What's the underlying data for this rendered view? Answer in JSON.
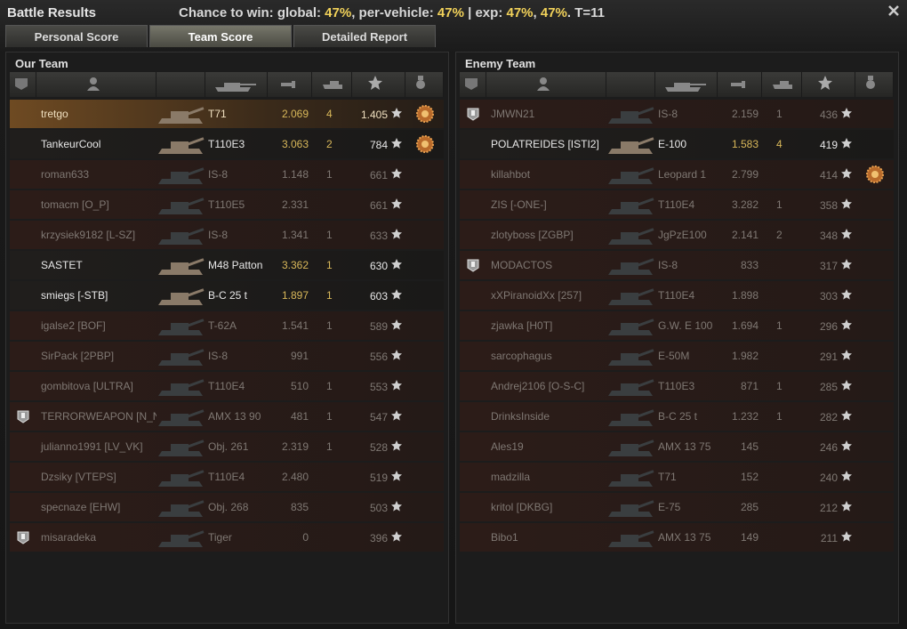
{
  "header": {
    "title": "Battle Results",
    "summary": [
      {
        "text": "Chance to win: global: "
      },
      {
        "text": "47%",
        "hl": true
      },
      {
        "text": ", per-vehicle: "
      },
      {
        "text": "47%",
        "hl": true
      },
      {
        "text": " | exp: "
      },
      {
        "text": "47%",
        "hl": true
      },
      {
        "text": ", "
      },
      {
        "text": "47%",
        "hl": true
      },
      {
        "text": ". T=11"
      }
    ]
  },
  "tabs": {
    "items": [
      "Personal Score",
      "Team Score",
      "Detailed Report"
    ],
    "active": 1
  },
  "teams": [
    {
      "title": "Our Team",
      "rows": [
        {
          "player": "tretgo",
          "vehicle": "T71",
          "damage": "2.069",
          "frags": "4",
          "exp": "1.405",
          "medal": true,
          "alive": true,
          "self": true
        },
        {
          "player": "TankeurCool",
          "vehicle": "T110E3",
          "damage": "3.063",
          "frags": "2",
          "exp": "784",
          "medal": true,
          "alive": true
        },
        {
          "player": "roman633",
          "vehicle": "IS-8",
          "damage": "1.148",
          "frags": "1",
          "exp": "661"
        },
        {
          "player": "tomacm [O_P]",
          "vehicle": "T110E5",
          "damage": "2.331",
          "exp": "661"
        },
        {
          "player": "krzysiek9182 [L-SZ]",
          "vehicle": "IS-8",
          "damage": "1.341",
          "frags": "1",
          "exp": "633"
        },
        {
          "player": "SASTET",
          "vehicle": "M48 Patton",
          "damage": "3.362",
          "frags": "1",
          "exp": "630",
          "alive": true
        },
        {
          "player": "smiegs [-STB]",
          "vehicle": "B-C 25 t",
          "damage": "1.897",
          "frags": "1",
          "exp": "603",
          "alive": true
        },
        {
          "player": "igalse2 [BOF]",
          "vehicle": "T-62A",
          "damage": "1.541",
          "frags": "1",
          "exp": "589"
        },
        {
          "player": "SirPack [2PBP]",
          "vehicle": "IS-8",
          "damage": "991",
          "exp": "556"
        },
        {
          "player": "gombitova [ULTRA]",
          "vehicle": "T110E4",
          "damage": "510",
          "frags": "1",
          "exp": "553"
        },
        {
          "player": "TERRORWEAPON [N_N]",
          "vehicle": "AMX 13 90",
          "damage": "481",
          "frags": "1",
          "exp": "547",
          "platoon": true
        },
        {
          "player": "julianno1991 [LV_VK]",
          "vehicle": "Obj. 261",
          "damage": "2.319",
          "frags": "1",
          "exp": "528"
        },
        {
          "player": "Dzsiky [VTEPS]",
          "vehicle": "T110E4",
          "damage": "2.480",
          "exp": "519"
        },
        {
          "player": "specnaze [EHW]",
          "vehicle": "Obj. 268",
          "damage": "835",
          "exp": "503"
        },
        {
          "player": "misaradeka",
          "vehicle": "Tiger",
          "damage": "0",
          "exp": "396",
          "platoon": true
        }
      ]
    },
    {
      "title": "Enemy Team",
      "rows": [
        {
          "player": "JMWN21",
          "vehicle": "IS-8",
          "damage": "2.159",
          "frags": "1",
          "exp": "436",
          "platoon": true
        },
        {
          "player": "POLATREIDES [ISTI2]",
          "vehicle": "E-100",
          "damage": "1.583",
          "frags": "4",
          "exp": "419",
          "alive": true
        },
        {
          "player": "killahbot",
          "vehicle": "Leopard 1",
          "damage": "2.799",
          "exp": "414",
          "medal": true
        },
        {
          "player": "ZIS [-ONE-]",
          "vehicle": "T110E4",
          "damage": "3.282",
          "frags": "1",
          "exp": "358"
        },
        {
          "player": "zlotyboss [ZGBP]",
          "vehicle": "JgPzE100",
          "damage": "2.141",
          "frags": "2",
          "exp": "348"
        },
        {
          "player": "MODACTOS",
          "vehicle": "IS-8",
          "damage": "833",
          "exp": "317",
          "platoon": true
        },
        {
          "player": "xXPiranoidXx [257]",
          "vehicle": "T110E4",
          "damage": "1.898",
          "exp": "303"
        },
        {
          "player": "zjawka [H0T]",
          "vehicle": "G.W. E 100",
          "damage": "1.694",
          "frags": "1",
          "exp": "296"
        },
        {
          "player": "sarcophagus",
          "vehicle": "E-50M",
          "damage": "1.982",
          "exp": "291"
        },
        {
          "player": "Andrej2106 [O-S-C]",
          "vehicle": "T110E3",
          "damage": "871",
          "frags": "1",
          "exp": "285"
        },
        {
          "player": "DrinksInside",
          "vehicle": "B-C 25 t",
          "damage": "1.232",
          "frags": "1",
          "exp": "282"
        },
        {
          "player": "Ales19",
          "vehicle": "AMX 13 75",
          "damage": "145",
          "exp": "246"
        },
        {
          "player": "madzilla",
          "vehicle": "T71",
          "damage": "152",
          "exp": "240"
        },
        {
          "player": "kritol [DKBG]",
          "vehicle": "E-75",
          "damage": "285",
          "exp": "212"
        },
        {
          "player": "Bibo1",
          "vehicle": "AMX 13 75",
          "damage": "149",
          "exp": "211"
        }
      ]
    }
  ]
}
